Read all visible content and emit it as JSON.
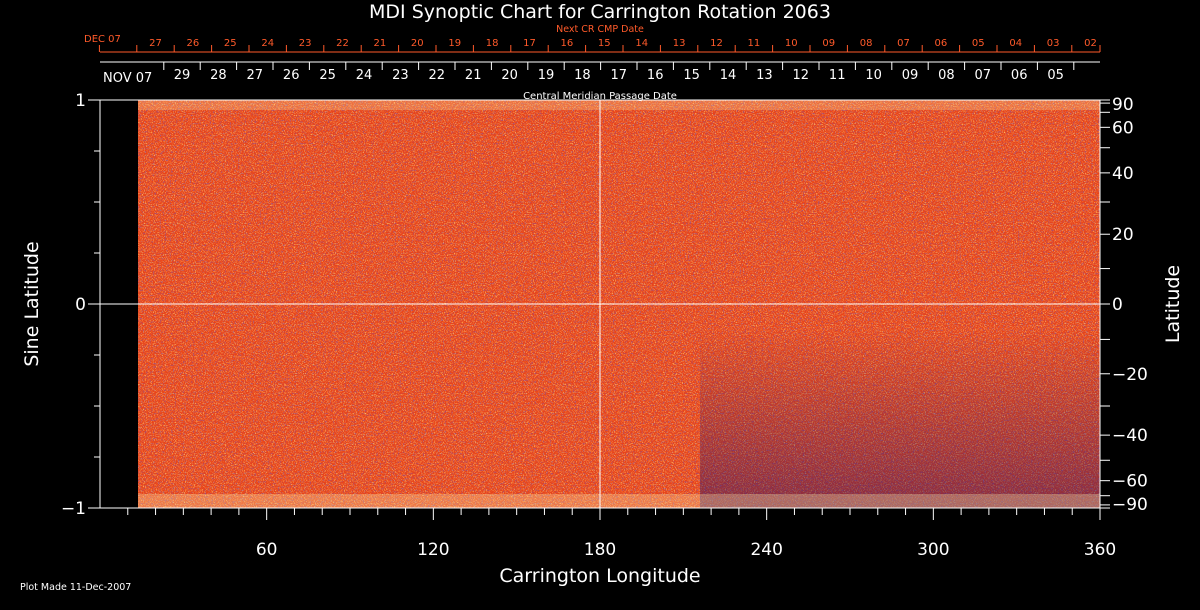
{
  "chart_data": {
    "type": "heatmap",
    "title": "MDI Synoptic Chart for Carrington Rotation 2063",
    "xlabel": "Carrington Longitude",
    "ylabel_left": "Sine Latitude",
    "ylabel_right": "Latitude",
    "xlim": [
      0,
      360
    ],
    "ylim": [
      -1,
      1
    ],
    "x_ticks": [
      "60",
      "120",
      "180",
      "240",
      "300",
      "360"
    ],
    "x_tick_values": [
      60,
      120,
      180,
      240,
      300,
      360
    ],
    "y_left_ticks": [
      "1",
      "0",
      "−1"
    ],
    "y_left_tick_values": [
      1,
      0,
      -1
    ],
    "y_right_ticks": [
      "90",
      "60",
      "40",
      "20",
      "0",
      "−20",
      "−40",
      "−60",
      "−90"
    ],
    "y_right_tick_values": [
      90,
      60,
      40,
      20,
      0,
      -20,
      -40,
      -60,
      -90
    ],
    "grid_lines": {
      "x": [
        180
      ],
      "y": [
        0
      ]
    },
    "colors": {
      "background": "#000000",
      "field": "#e8431a",
      "positive": "#ffd060",
      "negative": "#2a1a8a",
      "axis": "#ffffff",
      "top_axis": "#ff5a2a"
    },
    "top_axis_label": "Next CR CMP Date",
    "top_axis_month": "DEC 07",
    "top_axis_dates": [
      "27",
      "26",
      "25",
      "24",
      "23",
      "22",
      "21",
      "20",
      "19",
      "18",
      "17",
      "16",
      "15",
      "14",
      "13",
      "12",
      "11",
      "10",
      "09",
      "08",
      "07",
      "06",
      "05",
      "04",
      "03",
      "02"
    ],
    "date_axis_label": "Central Meridian Passage Date",
    "date_axis_month": "NOV 07",
    "date_axis_dates": [
      "29",
      "28",
      "27",
      "26",
      "25",
      "24",
      "23",
      "22",
      "21",
      "20",
      "19",
      "18",
      "17",
      "16",
      "15",
      "14",
      "13",
      "12",
      "11",
      "10",
      "09",
      "08",
      "07",
      "06",
      "05"
    ],
    "footer": "Plot Made 11-Dec-2007"
  }
}
